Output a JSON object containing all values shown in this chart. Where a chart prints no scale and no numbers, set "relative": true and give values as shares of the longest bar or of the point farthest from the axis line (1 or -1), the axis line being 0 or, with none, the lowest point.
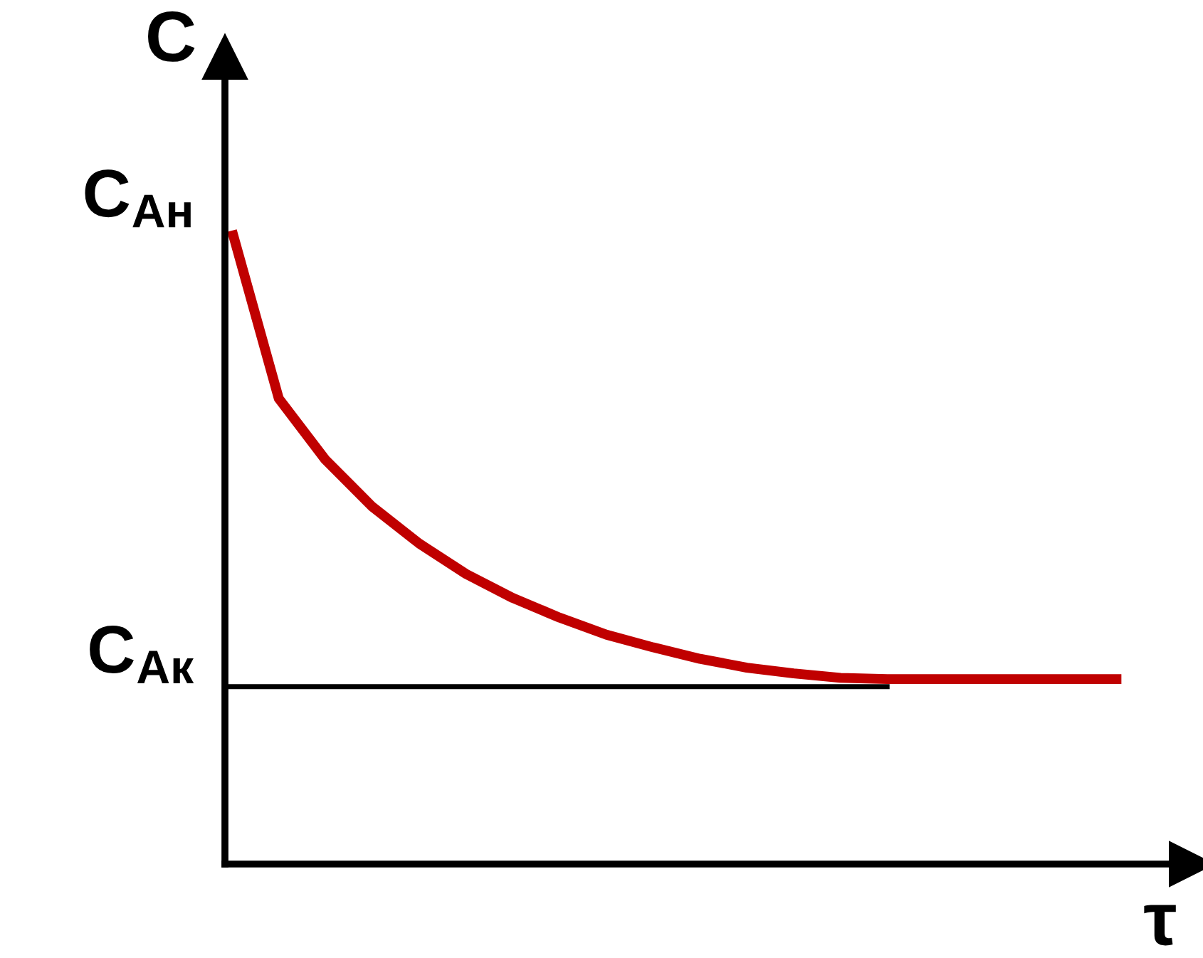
{
  "chart_data": {
    "type": "line",
    "relative": true,
    "xlabel": "τ",
    "ylabel": "C",
    "categories": [
      null,
      null,
      null,
      null,
      null,
      null,
      null,
      null,
      null,
      null,
      null,
      null,
      null,
      null,
      null,
      null,
      null,
      null,
      null,
      null
    ],
    "series": [
      {
        "color": "#c00000",
        "values": [
          1.0,
          0.735,
          0.638,
          0.564,
          0.506,
          0.458,
          0.42,
          0.389,
          0.362,
          0.342,
          0.324,
          0.31,
          0.301,
          0.294,
          0.292,
          0.292,
          0.292,
          0.292,
          0.292,
          0.292
        ]
      }
    ],
    "ref_lines": [
      {
        "axis": "y",
        "value": 0.28,
        "label": "C$_{Ак}$",
        "color": "#000000"
      }
    ],
    "annotations": [
      "C$_{Ан}$"
    ],
    "legend": false,
    "marker": "none",
    "line_style": "solid"
  }
}
